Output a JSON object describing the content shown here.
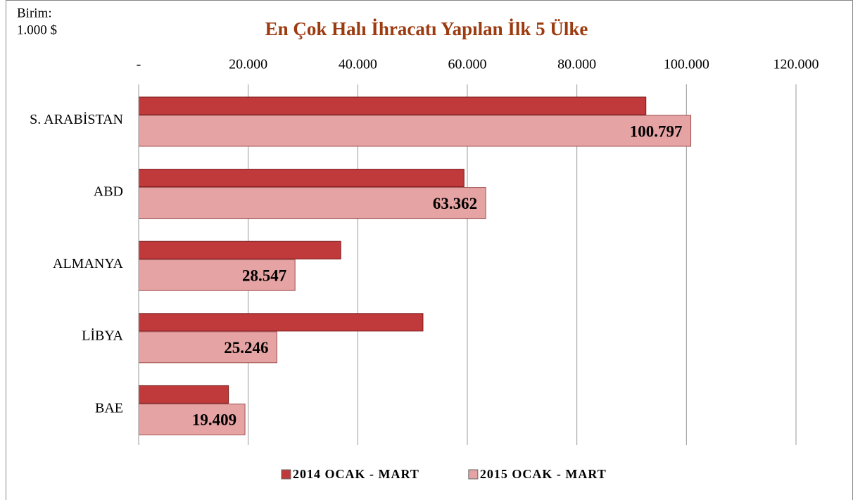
{
  "chart_data": {
    "type": "hbar",
    "title": "En Çok Halı İhracatı Yapılan İlk 5 Ülke",
    "annotations": [
      "Birim:",
      "1.000 $"
    ],
    "categories": [
      "S. ARABİSTAN",
      "ABD",
      "ALMANYA",
      "LİBYA",
      "BAE"
    ],
    "series": [
      {
        "name": "2014 OCAK - MART",
        "color": "#c0393b",
        "values": [
          92600,
          59400,
          36900,
          51900,
          16400
        ]
      },
      {
        "name": "2015 OCAK - MART",
        "color": "#e6a3a4",
        "values": [
          100797,
          63362,
          28547,
          25246,
          19409
        ],
        "value_labels": [
          "100.797",
          "63.362",
          "28.547",
          "25.246",
          "19.409"
        ]
      }
    ],
    "xlim": [
      0,
      120000
    ],
    "xticks": [
      {
        "value": 0,
        "label": "-"
      },
      {
        "value": 20000,
        "label": "20.000"
      },
      {
        "value": 40000,
        "label": "40.000"
      },
      {
        "value": 60000,
        "label": "60.000"
      },
      {
        "value": 80000,
        "label": "80.000"
      },
      {
        "value": 100000,
        "label": "100.000"
      },
      {
        "value": 120000,
        "label": "120.000"
      }
    ],
    "grid": true,
    "legend": "bottom"
  }
}
